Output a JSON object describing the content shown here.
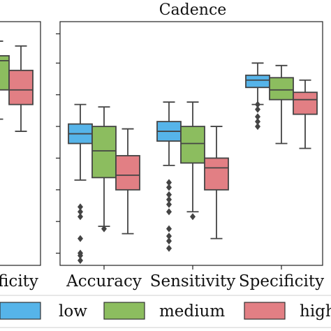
{
  "chart_data": [
    {
      "type": "box",
      "partial": true,
      "title": "",
      "categories": [
        "Specificity"
      ],
      "category_labels_visible": [
        "ficity"
      ],
      "series": [
        {
          "name": "low",
          "color": "#56b4e9",
          "boxes": [
            null
          ]
        },
        {
          "name": "medium",
          "color": "#8cbd5f",
          "boxes": [
            {
              "whisker_low": 0.6,
              "q1": 0.72,
              "median": 0.84,
              "q3": 0.86,
              "whisker_high": 0.92,
              "outliers": []
            }
          ]
        },
        {
          "name": "high",
          "color": "#e27f84",
          "boxes": [
            {
              "whisker_low": 0.55,
              "q1": 0.66,
              "median": 0.72,
              "q3": 0.8,
              "whisker_high": 0.9,
              "outliers": []
            }
          ]
        }
      ]
    },
    {
      "type": "box",
      "title": "Cadence",
      "categories": [
        "Accuracy",
        "Sensitivity",
        "Specificity"
      ],
      "grid": false,
      "legend": "bottom",
      "series": [
        {
          "name": "low",
          "color": "#56b4e9",
          "boxes": [
            {
              "whisker_low": 0.35,
              "q1": 0.5,
              "median": 0.54,
              "q3": 0.58,
              "whisker_high": 0.66,
              "outliers": [
                0.02,
                0.04,
                0.05,
                0.11,
                0.2,
                0.22,
                0.24
              ]
            },
            {
              "whisker_low": 0.41,
              "q1": 0.51,
              "median": 0.55,
              "q3": 0.59,
              "whisker_high": 0.67,
              "outliers": [
                0.07,
                0.1,
                0.12,
                0.15,
                0.22,
                0.25,
                0.27,
                0.29,
                0.32,
                0.34
              ]
            },
            {
              "whisker_low": 0.66,
              "q1": 0.73,
              "median": 0.76,
              "q3": 0.78,
              "whisker_high": 0.83,
              "outliers": [
                0.57,
                0.59,
                0.61,
                0.64,
                0.66
              ]
            }
          ]
        },
        {
          "name": "medium",
          "color": "#8cbd5f",
          "boxes": [
            {
              "whisker_low": 0.16,
              "q1": 0.36,
              "median": 0.47,
              "q3": 0.57,
              "whisker_high": 0.65,
              "outliers": [
                0.15
              ]
            },
            {
              "whisker_low": 0.22,
              "q1": 0.42,
              "median": 0.5,
              "q3": 0.57,
              "whisker_high": 0.67,
              "outliers": [
                0.2
              ]
            },
            {
              "whisker_low": 0.5,
              "q1": 0.68,
              "median": 0.72,
              "q3": 0.77,
              "whisker_high": 0.82,
              "outliers": []
            }
          ]
        },
        {
          "name": "high",
          "color": "#e27f84",
          "boxes": [
            {
              "whisker_low": 0.13,
              "q1": 0.31,
              "median": 0.37,
              "q3": 0.45,
              "whisker_high": 0.56,
              "outliers": []
            },
            {
              "whisker_low": 0.11,
              "q1": 0.31,
              "median": 0.4,
              "q3": 0.44,
              "whisker_high": 0.57,
              "outliers": []
            },
            {
              "whisker_low": 0.48,
              "q1": 0.62,
              "median": 0.68,
              "q3": 0.71,
              "whisker_high": 0.76,
              "outliers": []
            }
          ]
        }
      ]
    }
  ],
  "legend": {
    "items": [
      {
        "label": "low",
        "color": "#56b4e9"
      },
      {
        "label": "medium",
        "color": "#8cbd5f"
      },
      {
        "label": "high",
        "color": "#e27f84"
      }
    ]
  }
}
